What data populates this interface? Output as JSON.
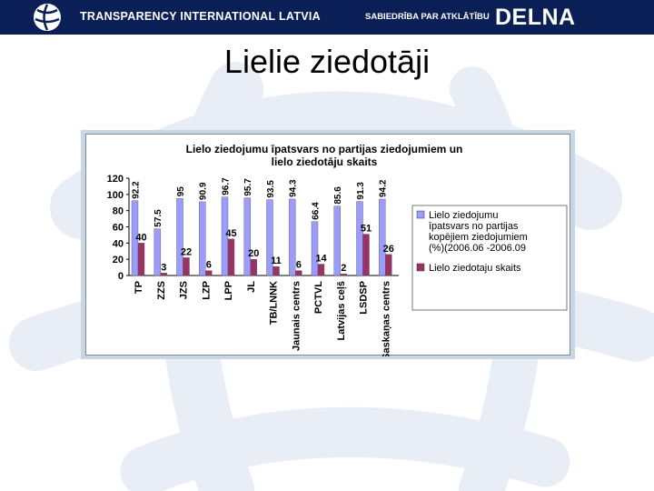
{
  "header": {
    "org_name": "TRANSPARENCY INTERNATIONAL LATVIA",
    "tagline": "SABIEDRĪBA PAR ATKLĀTĪBU",
    "brand": "DELNA"
  },
  "slide": {
    "title": "Lielie ziedotāji"
  },
  "colors": {
    "header_bg": "#0b1f57",
    "series1": "#9c9cff",
    "series2": "#993366",
    "frame": "#c7d6e6",
    "watermark": "#e9edf5"
  },
  "chart_data": {
    "type": "bar",
    "title_lines": [
      "Lielo ziedojumu īpatsvars no partijas ziedojumiem un",
      "lielo ziedotāju skaits"
    ],
    "categories": [
      "TP",
      "ZZS",
      "JZS",
      "LZP",
      "LPP",
      "JL",
      "TB/LNNK",
      "Jaunais centrs",
      "PCTVL",
      "Latvijas ceļš",
      "LSDSP",
      "Saskaņas centrs"
    ],
    "series": [
      {
        "name_lines": [
          "Lielo ziedojumu",
          "īpatsvars no partijas",
          "kopējiem ziedojumiem",
          "(%)(2006.06 -2006.09"
        ],
        "values": [
          92.2,
          57.5,
          95,
          90.9,
          96.7,
          95.7,
          93.5,
          94.3,
          66.4,
          85.6,
          91.3,
          94.2
        ],
        "labels": [
          "92.2",
          "57.5",
          "95",
          "90.9",
          "96.7",
          "95.7",
          "93.5",
          "94.3",
          "66.4",
          "85.6",
          "91.3",
          "94.2"
        ]
      },
      {
        "name_lines": [
          "Lielo ziedotaju skaits"
        ],
        "values": [
          40,
          3,
          22,
          6,
          45,
          20,
          11,
          6,
          14,
          2,
          51,
          26
        ],
        "labels": [
          "40",
          "3",
          "22",
          "6",
          "45",
          "20",
          "11",
          "6",
          "14",
          "2",
          "51",
          "26"
        ]
      }
    ],
    "ylim": [
      0,
      120
    ],
    "yticks": [
      "0",
      "20",
      "40",
      "60",
      "80",
      "100",
      "120"
    ],
    "grid": false,
    "legend_position": "right"
  }
}
